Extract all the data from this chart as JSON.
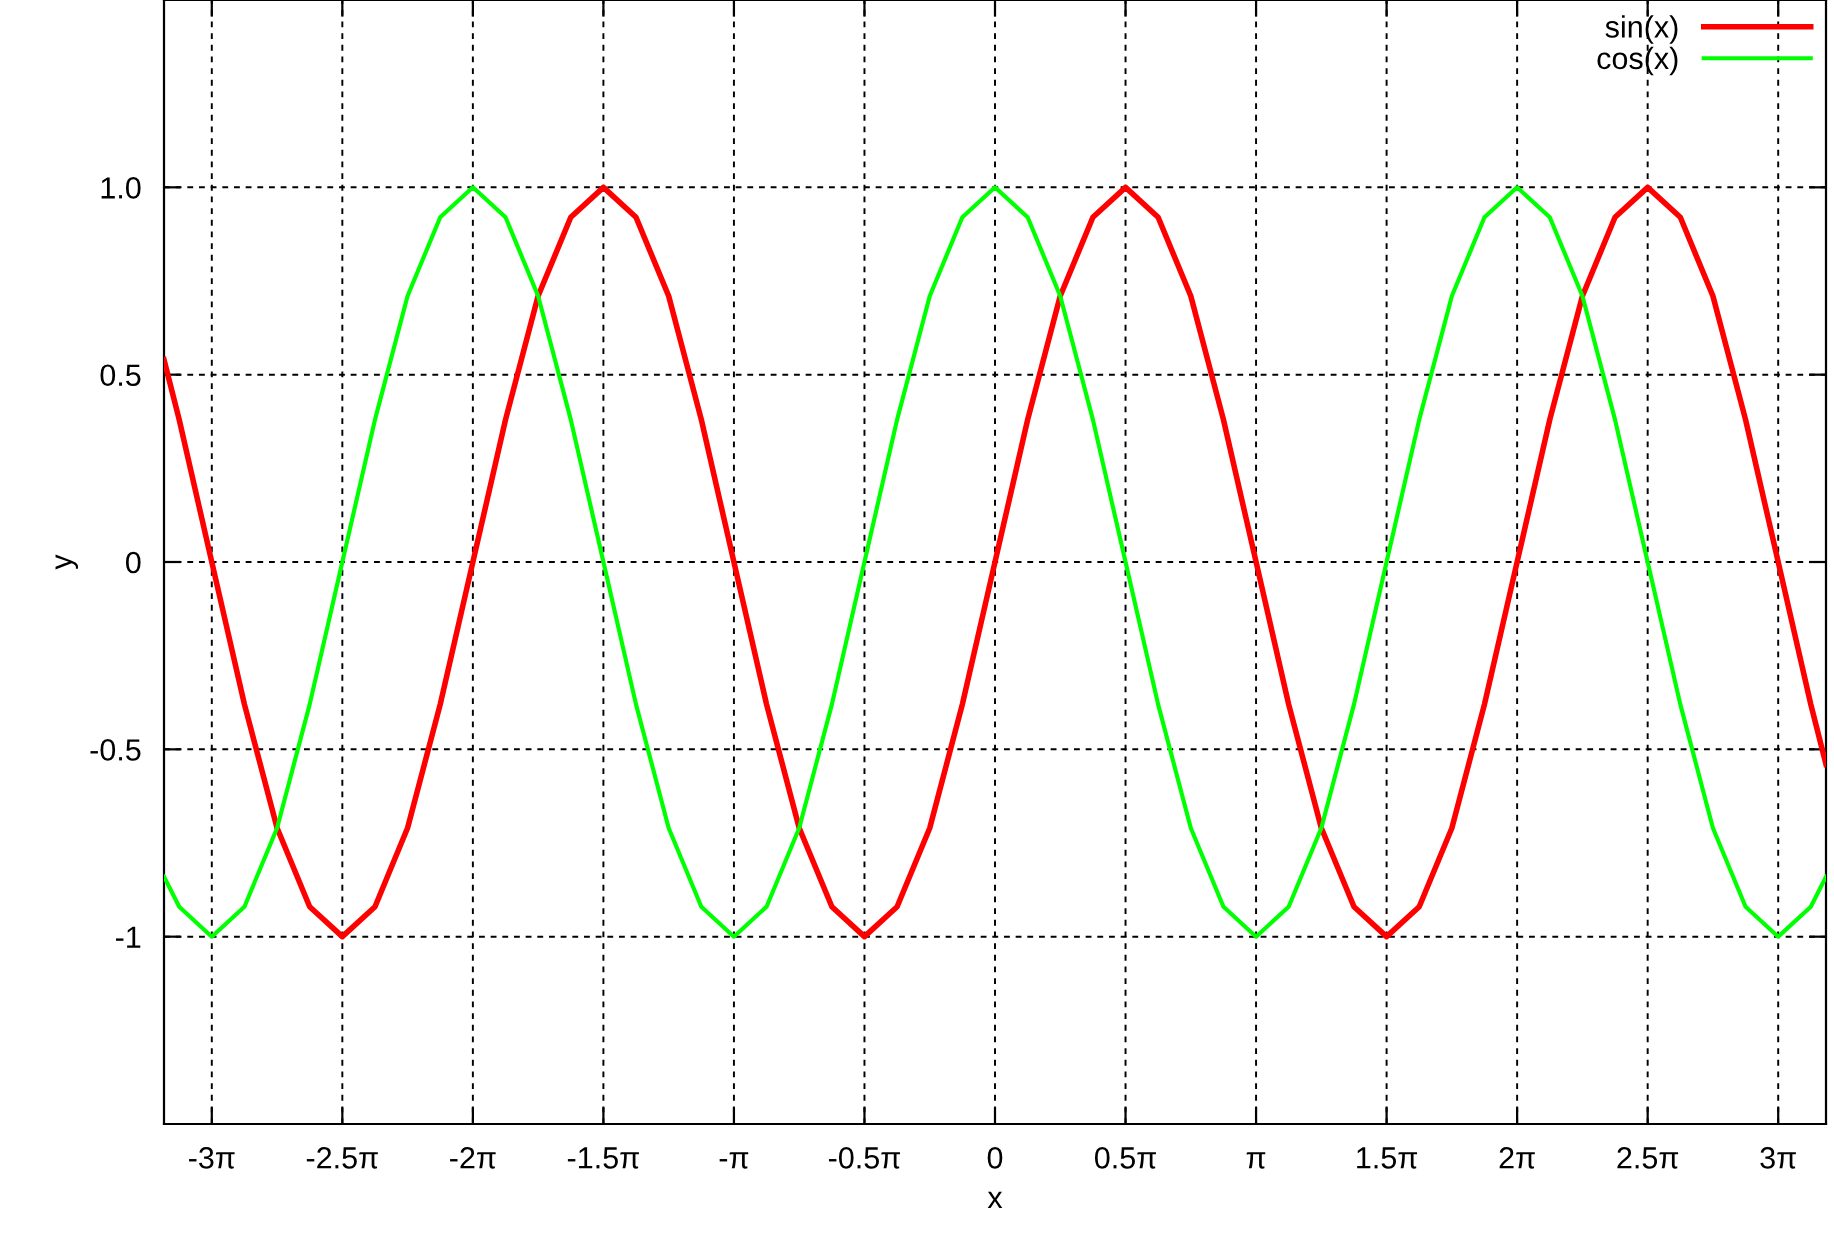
{
  "chart_data": {
    "type": "line",
    "xlabel": "x",
    "ylabel": "y",
    "x": [
      -10,
      -9.817,
      -9.425,
      -9.032,
      -8.639,
      -8.247,
      -7.854,
      -7.461,
      -7.069,
      -6.676,
      -6.283,
      -5.89,
      -5.498,
      -5.105,
      -4.712,
      -4.32,
      -3.927,
      -3.534,
      -3.142,
      -2.749,
      -2.356,
      -1.963,
      -1.571,
      -1.178,
      -0.785,
      -0.393,
      0,
      0.393,
      0.785,
      1.178,
      1.571,
      1.963,
      2.356,
      2.749,
      3.142,
      3.534,
      3.927,
      4.32,
      4.712,
      5.105,
      5.498,
      5.89,
      6.283,
      6.676,
      7.069,
      7.461,
      7.854,
      8.247,
      8.639,
      9.032,
      9.425,
      9.817,
      10
    ],
    "series": [
      {
        "name": "sin(x)",
        "color": "#ff0000",
        "values": [
          0.54,
          0.38,
          0,
          -0.38,
          -0.71,
          -0.92,
          -1,
          -0.92,
          -0.71,
          -0.38,
          0,
          0.38,
          0.71,
          0.92,
          1,
          0.92,
          0.71,
          0.38,
          0,
          -0.38,
          -0.71,
          -0.92,
          -1,
          -0.92,
          -0.71,
          -0.38,
          0,
          0.38,
          0.71,
          0.92,
          1,
          0.92,
          0.71,
          0.38,
          0,
          -0.38,
          -0.71,
          -0.92,
          -1,
          -0.92,
          -0.71,
          -0.38,
          0,
          0.38,
          0.71,
          0.92,
          1,
          0.92,
          0.71,
          0.38,
          0,
          -0.38,
          -0.54
        ]
      },
      {
        "name": "cos(x)",
        "color": "#00ff00",
        "values": [
          -0.84,
          -0.92,
          -1,
          -0.92,
          -0.71,
          -0.38,
          0,
          0.38,
          0.71,
          0.92,
          1,
          0.92,
          0.71,
          0.38,
          0,
          -0.38,
          -0.71,
          -0.92,
          -1,
          -0.92,
          -0.71,
          -0.38,
          0,
          0.38,
          0.71,
          0.92,
          1,
          0.92,
          0.71,
          0.38,
          0,
          -0.38,
          -0.71,
          -0.92,
          -1,
          -0.92,
          -0.71,
          -0.38,
          0,
          0.38,
          0.71,
          0.92,
          1,
          0.92,
          0.71,
          0.38,
          0,
          -0.38,
          -0.71,
          -0.92,
          -1,
          -0.92,
          -0.84
        ]
      }
    ],
    "xlim": [
      -10,
      10
    ],
    "ylim": [
      -1.5,
      1.5
    ],
    "xticks": [
      {
        "value": -9.4248,
        "label": "-3π"
      },
      {
        "value": -7.854,
        "label": "-2.5π"
      },
      {
        "value": -6.2832,
        "label": "-2π"
      },
      {
        "value": -4.7124,
        "label": "-1.5π"
      },
      {
        "value": -3.1416,
        "label": "-π"
      },
      {
        "value": -1.5708,
        "label": "-0.5π"
      },
      0,
      {
        "value": 1.5708,
        "label": "0.5π"
      },
      {
        "value": 3.1416,
        "label": "π"
      },
      {
        "value": 4.7124,
        "label": "1.5π"
      },
      {
        "value": 6.2832,
        "label": "2π"
      },
      {
        "value": 7.854,
        "label": "2.5π"
      },
      {
        "value": 9.4248,
        "label": "3π"
      }
    ],
    "yticks": [
      {
        "value": -1,
        "label": "-1"
      },
      {
        "value": -0.5,
        "label": "-0.5"
      },
      0,
      0.5,
      {
        "value": 1,
        "label": "1.0"
      }
    ],
    "grid": true,
    "legend": "top right",
    "line_style": "solid",
    "marker": "none"
  }
}
